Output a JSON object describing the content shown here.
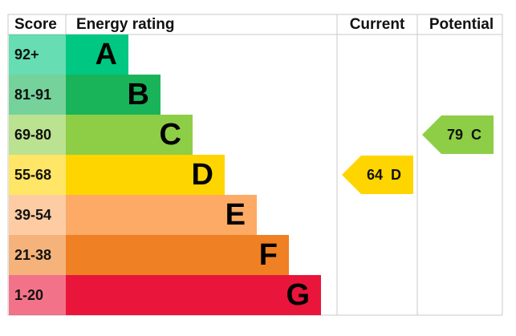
{
  "header": {
    "score": "Score",
    "rating": "Energy rating",
    "current": "Current",
    "potential": "Potential"
  },
  "bands": [
    {
      "score": "92+",
      "letter": "A",
      "color": "#00c781"
    },
    {
      "score": "81-91",
      "letter": "B",
      "color": "#19b459"
    },
    {
      "score": "69-80",
      "letter": "C",
      "color": "#8dce46"
    },
    {
      "score": "55-68",
      "letter": "D",
      "color": "#ffd500"
    },
    {
      "score": "39-54",
      "letter": "E",
      "color": "#fcaa65"
    },
    {
      "score": "21-38",
      "letter": "F",
      "color": "#ef8023"
    },
    {
      "score": "1-20",
      "letter": "G",
      "color": "#e9153b"
    }
  ],
  "current": {
    "value": 64,
    "letter": "D"
  },
  "potential": {
    "value": 79,
    "letter": "C"
  }
}
